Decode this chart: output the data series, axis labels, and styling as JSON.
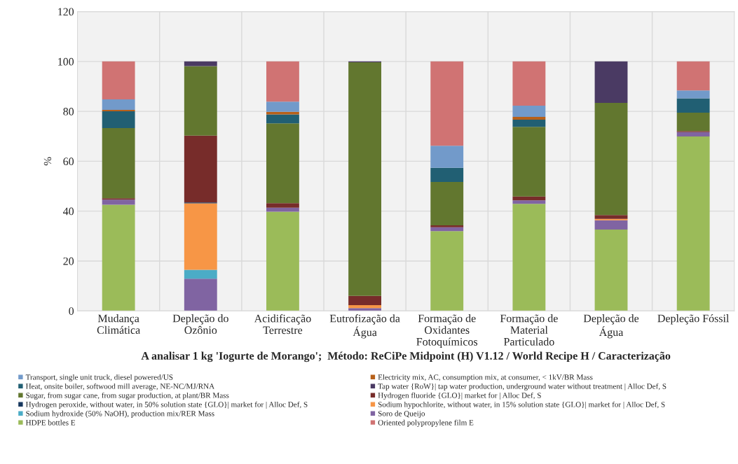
{
  "chart_data": {
    "type": "bar",
    "stacked": true,
    "xlabel": "A analisar 1 kg 'Iogurte de Morango';  Método: ReCiPe Midpoint (H) V1.12 / World Recipe H / Caracterização",
    "ylabel": "%",
    "categories": [
      "Mudança\nClimática",
      "Depleção do\nOzônio",
      "Acidificação\nTerrestre",
      "Eutrofização da\nÁgua",
      "Formação de\nOxidantes\nFotoquímicos",
      "Formação de\nMaterial\nParticulado",
      "Depleção de\nÁgua",
      "Depleção Fóssil"
    ],
    "ylim": [
      0,
      120
    ],
    "yticks": [
      0,
      20,
      40,
      60,
      80,
      100,
      120
    ],
    "grid": true,
    "legend": "bottom",
    "series": [
      {
        "name": "HDPE bottles E",
        "color": "#9bbb59",
        "values": [
          42.6,
          0,
          39.8,
          0,
          32.0,
          42.9,
          32.6,
          69.9
        ]
      },
      {
        "name": "Soro de Queijo",
        "color": "#8064a2",
        "values": [
          2.0,
          12.9,
          1.6,
          1.1,
          1.5,
          1.4,
          3.7,
          1.8
        ]
      },
      {
        "name": "Sodium hydroxide (50% NaOH), production mix/RER Mass",
        "color": "#4bacc6",
        "values": [
          0,
          3.6,
          0,
          0,
          0,
          0,
          0,
          0
        ]
      },
      {
        "name": "Sodium hypochlorite, without water, in 15% solution state {GLO}| market for | Alloc Def, S",
        "color": "#f79646",
        "values": [
          0,
          26.6,
          0,
          1.2,
          0,
          0,
          0.6,
          0
        ]
      },
      {
        "name": "Hydrogen peroxide, without water, in 50% solution state {GLO}| market for | Alloc Def, S",
        "color": "#17375e",
        "values": [
          0,
          0.4,
          0,
          0,
          0,
          0,
          0,
          0
        ]
      },
      {
        "name": "Hydrogen fluoride {GLO}| market for | Alloc Def, S",
        "color": "#772c2a",
        "values": [
          0.6,
          26.8,
          1.8,
          3.7,
          0.8,
          1.6,
          1.5,
          0.4
        ]
      },
      {
        "name": "Sugar, from sugar cane, from sugar production, at plant/BR Mass",
        "color": "#62772f",
        "values": [
          28.1,
          27.8,
          32.0,
          93.7,
          17.4,
          27.9,
          45.0,
          7.4
        ]
      },
      {
        "name": "Tap water {RoW}| tap water production, underground water without treatment | Alloc Def, S",
        "color": "#4a3a63",
        "values": [
          0,
          1.9,
          0,
          0.3,
          0,
          0,
          16.6,
          0
        ]
      },
      {
        "name": "Heat, onsite boiler, softwood mill average, NE-NC/MJ/RNA",
        "color": "#215f73",
        "values": [
          6.7,
          0,
          3.6,
          0,
          5.7,
          2.9,
          0,
          5.7
        ]
      },
      {
        "name": "Electricity mix, AC, consumption mix, at consumer, < 1kV/BR Mass",
        "color": "#b7601a",
        "values": [
          0.6,
          0,
          1.0,
          0,
          0,
          1.1,
          0,
          0
        ]
      },
      {
        "name": "Transport, single unit truck, diesel powered/US",
        "color": "#729aca",
        "values": [
          4.2,
          0,
          4.1,
          0,
          8.8,
          4.5,
          0,
          3.2
        ]
      },
      {
        "name": "Oriented polypropylene film E",
        "color": "#d07373",
        "values": [
          15.2,
          0,
          16.1,
          0,
          33.8,
          17.7,
          0,
          11.6
        ]
      }
    ]
  }
}
